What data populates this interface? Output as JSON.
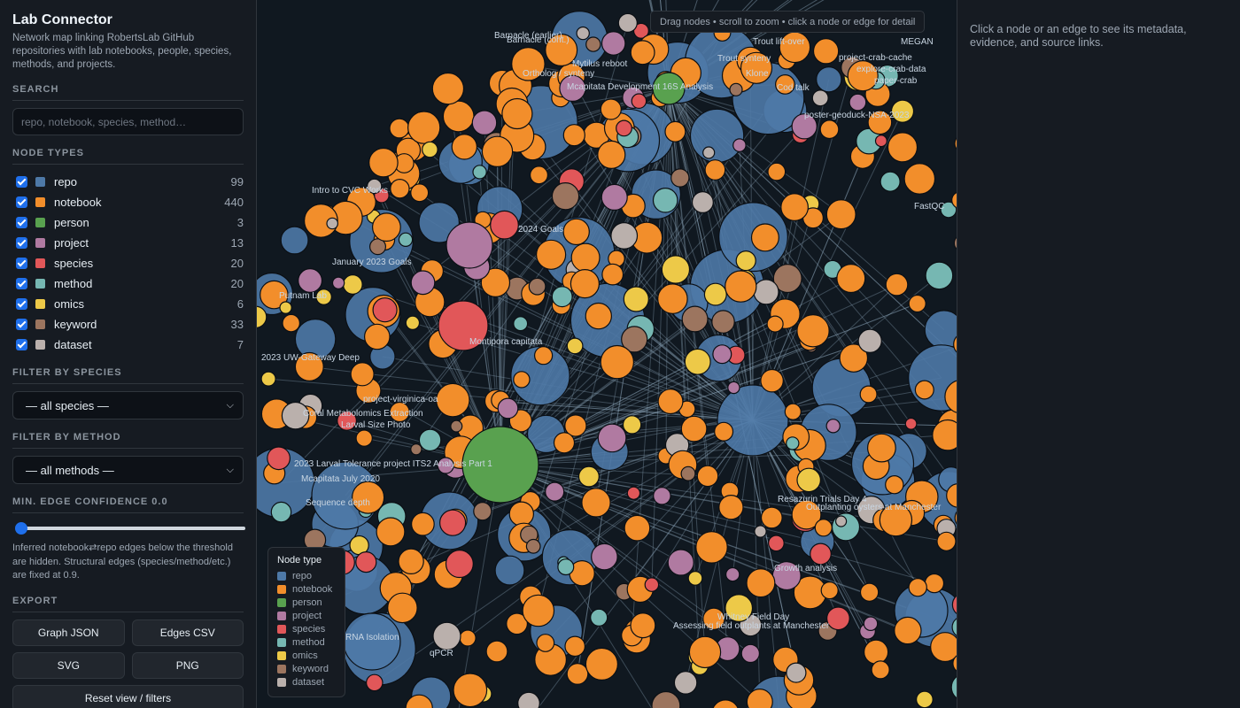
{
  "app": {
    "title": "Lab Connector",
    "subtitle": "Network map linking RobertsLab GitHub repositories with lab notebooks, people, species, methods, and projects."
  },
  "search": {
    "title": "SEARCH",
    "placeholder": "repo, notebook, species, method…"
  },
  "node_types": {
    "title": "NODE TYPES",
    "items": [
      {
        "label": "repo",
        "count": "99",
        "color": "#4e79a7",
        "checked": true
      },
      {
        "label": "notebook",
        "count": "440",
        "color": "#f28e2b",
        "checked": true
      },
      {
        "label": "person",
        "count": "3",
        "color": "#59a14f",
        "checked": true
      },
      {
        "label": "project",
        "count": "13",
        "color": "#b07aa1",
        "checked": true
      },
      {
        "label": "species",
        "count": "20",
        "color": "#e15759",
        "checked": true
      },
      {
        "label": "method",
        "count": "20",
        "color": "#76b7b2",
        "checked": true
      },
      {
        "label": "omics",
        "count": "6",
        "color": "#edc948",
        "checked": true
      },
      {
        "label": "keyword",
        "count": "33",
        "color": "#9c755f",
        "checked": true
      },
      {
        "label": "dataset",
        "count": "7",
        "color": "#bab0ac",
        "checked": true
      }
    ]
  },
  "filter_species": {
    "title": "FILTER BY SPECIES",
    "value": "— all species —"
  },
  "filter_method": {
    "title": "FILTER BY METHOD",
    "value": "— all methods —"
  },
  "confidence": {
    "title": "MIN. EDGE CONFIDENCE 0.0",
    "value": 0.0,
    "hint": "Inferred notebook⇄repo edges below the threshold are hidden. Structural edges (species/method/etc.) are fixed at 0.9."
  },
  "export": {
    "title": "EXPORT",
    "graph_json": "Graph JSON",
    "edges_csv": "Edges CSV",
    "svg": "SVG",
    "png": "PNG",
    "reset": "Reset view / filters"
  },
  "canvas": {
    "hint": "Drag nodes • scroll to zoom • click a node or edge for detail",
    "legend_title": "Node type",
    "labels": [
      "Barnacle (earlier)",
      "Barnacle (cont.)",
      "Mytilus reboot",
      "Ortholog / synteny",
      "Mcapitata Development 16S Analysis",
      "Trout synteny",
      "Klone",
      "Cod talk",
      "Trout lift-over",
      "MEGAN",
      "project-crab-cache",
      "explore-crab-data",
      "paper-crab",
      "poster-geoduck-NSA-2023",
      "January 2023 Goals",
      "2024 Goals",
      "Sequence depth",
      "Mcapitata July 2020",
      "Coral Metabolomics Extraction",
      "Larval Size Photo",
      "2023 Larval Tolerance project ITS2 Analysis Part 1",
      "Resazurin Trials Day 4",
      "Growth analysis",
      "RNA Isolation",
      "qPCR",
      "Intro to CVC Works",
      "Putnam Lab",
      "2023 UW-Gateway Deep",
      "Montipora capitata",
      "project-virginica-oa",
      "FastQC",
      "Outplanting oysters at Manchester",
      "Whitney Field Day",
      "Assessing field outplants at Manchester"
    ]
  },
  "details": {
    "placeholder": "Click a node or an edge to see its metadata, evidence, and source links."
  }
}
